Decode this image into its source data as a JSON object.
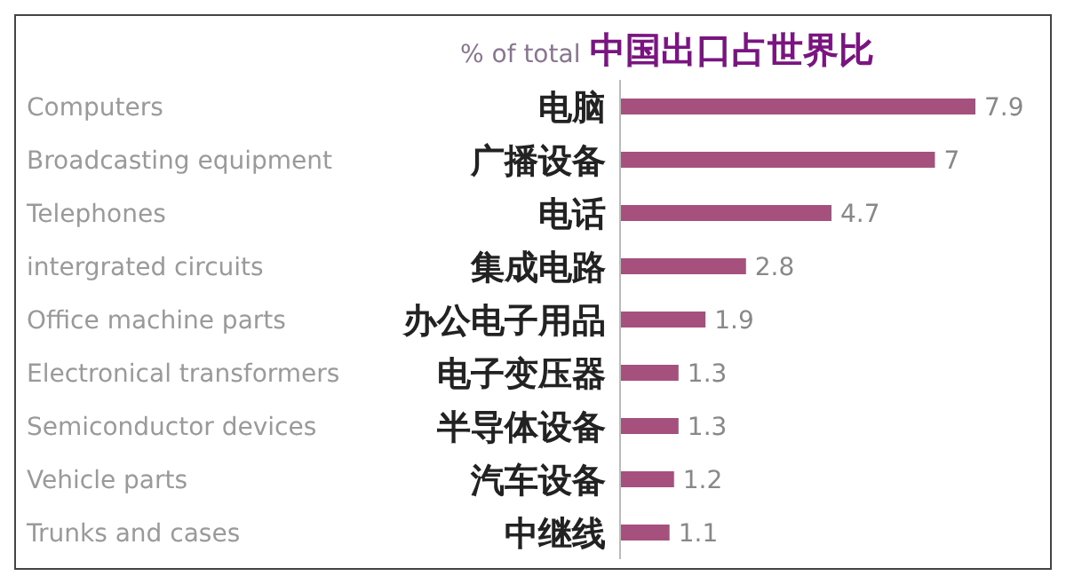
{
  "chart_data": {
    "type": "bar",
    "orientation": "horizontal",
    "title": "中国出口占世界比",
    "subtitle": "% of total",
    "categories": [
      "电脑",
      "广播设备",
      "电话",
      "集成电路",
      "办公电子用品",
      "电子变压器",
      "半导体设备",
      "汽车设备",
      "中继线"
    ],
    "values": [
      7.9,
      7,
      4.7,
      2.8,
      1.9,
      1.3,
      1.3,
      1.2,
      1.1
    ],
    "color": "#a6507e",
    "data_labels": true,
    "grid": false,
    "legend": false,
    "annotations": [
      "Computers",
      "Broadcasting equipment",
      "Telephones",
      "intergrated circuits",
      "Office machine parts",
      "Electronical transformers",
      "Semiconductor devices",
      "Vehicle parts",
      "Trunks and cases"
    ]
  }
}
